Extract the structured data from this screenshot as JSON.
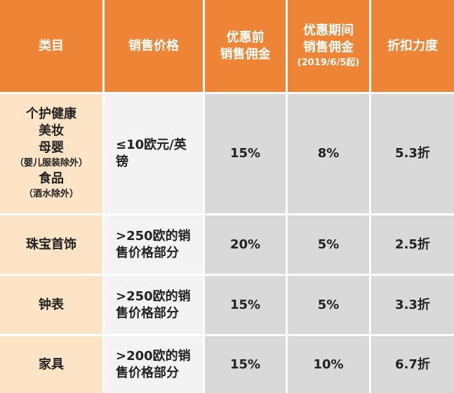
{
  "table": {
    "header": [
      [
        "类目"
      ],
      [
        "销售价格"
      ],
      [
        "优惠前",
        "销售佣金"
      ],
      [
        "优惠期间",
        "销售佣金",
        "(2019/6/5起)"
      ],
      [
        "折扣力度"
      ]
    ],
    "rows": [
      [
        [
          "个护健康",
          "美妆",
          "母婴",
          "（婴儿服装除外）",
          "食品",
          "（酒水除外）"
        ],
        [
          "≤10欧元/英",
          "镑"
        ],
        [
          "15%"
        ],
        [
          "8%"
        ],
        [
          "5.3折"
        ]
      ],
      [
        [
          "珠宝首饰"
        ],
        [
          ">250欧的销",
          "售价格部分"
        ],
        [
          "20%"
        ],
        [
          "5%"
        ],
        [
          "2.5折"
        ]
      ],
      [
        [
          "钟表"
        ],
        [
          ">250欧的销",
          "售价格部分"
        ],
        [
          "15%"
        ],
        [
          "5%"
        ],
        [
          "3.3折"
        ]
      ],
      [
        [
          "家具"
        ],
        [
          ">200欧的销",
          "售价格部分"
        ],
        [
          "15%"
        ],
        [
          "10%"
        ],
        [
          "6.7折"
        ]
      ]
    ]
  }
}
